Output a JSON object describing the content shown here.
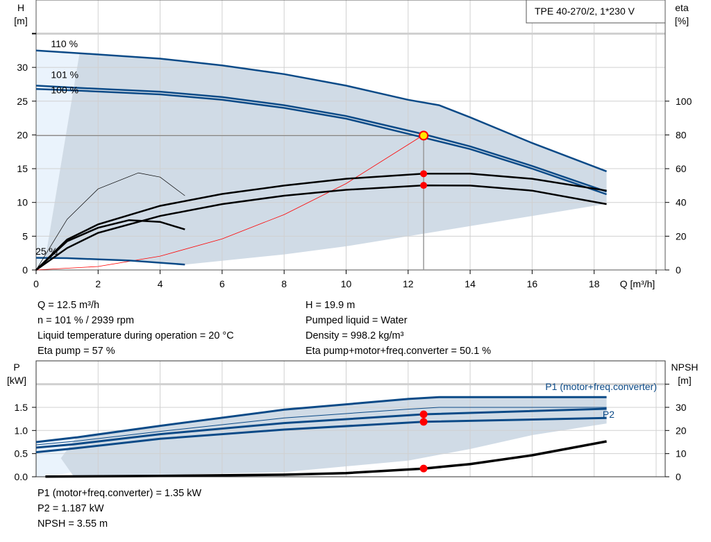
{
  "title_box": "TPE 40-270/2, 1*230 V",
  "colors": {
    "curve": "#0b4a87",
    "shade": "#d0dbe6",
    "shade_light": "#eaf3fc",
    "op_point": "#ff0000",
    "system": "#ff0000",
    "grid": "#d0d0d0"
  },
  "chart_data": [
    {
      "type": "line",
      "name_top": "head-efficiency",
      "xlabel": "Q [m³/h]",
      "ylabel_left": "H",
      "ylabel_left_unit": "[m]",
      "ylabel_right": "eta",
      "ylabel_right_unit": "[%]",
      "xlim": [
        0,
        20
      ],
      "ylim": [
        0,
        36
      ],
      "y2lim": [
        0,
        144
      ],
      "grid": true,
      "xticks": [
        "0",
        "2",
        "4",
        "6",
        "8",
        "10",
        "12",
        "14",
        "16",
        "18"
      ],
      "yticks": [
        "0",
        "5",
        "10",
        "15",
        "20",
        "25",
        "30"
      ],
      "y2ticks": [
        "0",
        "20",
        "40",
        "60",
        "80",
        "100"
      ],
      "speed_labels": [
        {
          "text": "110 %",
          "q": 0.3,
          "h": 33.5
        },
        {
          "text": "101 %",
          "q": 0.3,
          "h": 28.3
        },
        {
          "text": "100 %",
          "q": 0.3,
          "h": 27.3
        },
        {
          "text": "25 %",
          "q": -0.2,
          "h": 2.8
        }
      ],
      "series": [
        {
          "kind": "head",
          "label": "110 %",
          "x": [
            0,
            1.4,
            4,
            6,
            8,
            10,
            12,
            13,
            14,
            16,
            18.4
          ],
          "y": [
            32.5,
            32.1,
            31.3,
            30.3,
            29,
            27.3,
            25.2,
            24.4,
            22.6,
            18.8,
            14.6
          ]
        },
        {
          "kind": "head",
          "label": "101 %",
          "x": [
            0,
            1.2,
            4,
            6,
            8,
            10,
            12.5,
            14,
            16,
            18.4
          ],
          "y": [
            27.3,
            27,
            26.4,
            25.6,
            24.4,
            22.8,
            20.1,
            18.3,
            15.4,
            11.6
          ]
        },
        {
          "kind": "head",
          "label": "100 %",
          "x": [
            0,
            1.2,
            4,
            6,
            8,
            10,
            12.5,
            14,
            16,
            18.4
          ],
          "y": [
            26.8,
            26.6,
            26,
            25.2,
            24,
            22.4,
            19.6,
            17.9,
            15,
            11.2
          ]
        },
        {
          "kind": "head",
          "label": "25 %",
          "x": [
            0,
            1,
            3,
            4.8
          ],
          "y": [
            1.8,
            1.75,
            1.4,
            0.8
          ]
        },
        {
          "kind": "eta",
          "label": "Eta pump",
          "x": [
            0,
            1,
            2,
            4,
            6,
            8,
            10,
            12.5,
            14,
            16,
            18.4
          ],
          "y": [
            0,
            18,
            27,
            38,
            45,
            50,
            54,
            57,
            57,
            54,
            47
          ]
        },
        {
          "kind": "eta",
          "label": "Eta total",
          "x": [
            0,
            1,
            2,
            4,
            6,
            8,
            10,
            12.5,
            14,
            16,
            18.4
          ],
          "y": [
            0,
            13,
            22,
            32,
            39,
            44,
            47.5,
            50.1,
            50,
            47,
            39
          ]
        },
        {
          "kind": "eta_thin",
          "x": [
            0,
            1,
            2,
            3.3,
            4,
            4.8
          ],
          "y": [
            0,
            30,
            48,
            57.5,
            55,
            44
          ]
        },
        {
          "kind": "eta_low",
          "x": [
            0,
            1,
            2,
            3,
            4,
            4.8
          ],
          "y": [
            0,
            17,
            25,
            29.5,
            28.5,
            24
          ]
        }
      ],
      "system_curve": {
        "x": [
          0,
          2,
          4,
          6,
          8,
          10,
          12.5
        ],
        "y": [
          0,
          0.51,
          2.05,
          4.6,
          8.2,
          12.8,
          20
        ]
      },
      "operating_point": {
        "q": 12.5,
        "h": 19.9,
        "eta_pump": 57,
        "eta_total": 50.1
      }
    },
    {
      "type": "line",
      "name_top": "power-npsh",
      "ylabel_left": "P",
      "ylabel_left_unit": "[kW]",
      "ylabel_right": "NPSH",
      "ylabel_right_unit": "[m]",
      "xlim": [
        0,
        20
      ],
      "ylim": [
        0,
        2.5
      ],
      "y2lim": [
        0,
        50
      ],
      "grid": true,
      "yticks": [
        "0.0",
        "0.5",
        "1.0",
        "1.5"
      ],
      "y2ticks": [
        "0",
        "10",
        "20",
        "30"
      ],
      "series_labels": [
        "P1 (motor+freq.converter)",
        "P2"
      ],
      "series": [
        {
          "kind": "p",
          "label": "P1 110 %",
          "x": [
            0,
            1.3,
            4,
            8,
            12,
            13,
            18.4
          ],
          "y": [
            0.75,
            0.85,
            1.1,
            1.45,
            1.68,
            1.72,
            1.72
          ]
        },
        {
          "kind": "pthin",
          "x": [
            0,
            1.3,
            4,
            8,
            12,
            13,
            18.4
          ],
          "y": [
            0.69,
            0.77,
            0.98,
            1.27,
            1.46,
            1.5,
            1.5
          ]
        },
        {
          "kind": "p",
          "label": "P1 (motor+freq.converter)",
          "x": [
            0,
            1.2,
            4,
            8,
            12.5,
            18.4
          ],
          "y": [
            0.63,
            0.7,
            0.92,
            1.16,
            1.35,
            1.47
          ]
        },
        {
          "kind": "p",
          "label": "P2",
          "x": [
            0,
            1.2,
            4,
            8,
            12.5,
            18.4
          ],
          "y": [
            0.53,
            0.61,
            0.82,
            1.02,
            1.187,
            1.27
          ]
        },
        {
          "kind": "npsh",
          "label": "NPSH",
          "x": [
            0.3,
            4,
            8,
            10,
            12.5,
            14,
            16,
            18.4
          ],
          "y": [
            0.1,
            0.4,
            0.9,
            1.6,
            3.55,
            5.5,
            9.3,
            15.3
          ]
        }
      ],
      "operating_points": {
        "p1": 1.35,
        "p2": 1.187,
        "npsh": 3.55
      }
    }
  ],
  "info_top_left": [
    "Q = 12.5 m³/h",
    "n = 101 % / 2939 rpm",
    "Liquid temperature during operation = 20 °C",
    "Eta pump = 57 %"
  ],
  "info_top_right": [
    "H = 19.9 m",
    "Pumped liquid = Water",
    "Density = 998.2 kg/m³",
    "Eta pump+motor+freq.converter = 50.1 %"
  ],
  "info_bottom": [
    "P1 (motor+freq.converter) = 1.35 kW",
    "P2 = 1.187 kW",
    "NPSH = 3.55 m"
  ]
}
